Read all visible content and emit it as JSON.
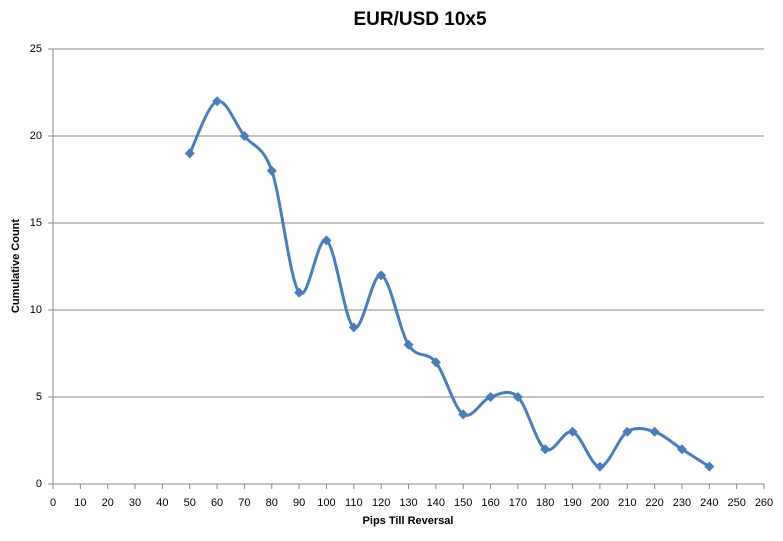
{
  "chart_data": {
    "type": "line",
    "title": "EUR/USD 10x5",
    "x_label": "Pips Till Reversal",
    "y_label": "Cumulative Count",
    "x": [
      50,
      60,
      70,
      80,
      90,
      100,
      110,
      120,
      130,
      140,
      150,
      160,
      170,
      180,
      190,
      200,
      210,
      220,
      230,
      240
    ],
    "values": [
      19,
      22,
      20,
      18,
      11,
      14,
      9,
      12,
      8,
      7,
      4,
      5,
      5,
      2,
      3,
      1,
      3,
      3,
      2,
      1
    ],
    "color": "#4a7ebb",
    "smooth": true,
    "grid": true,
    "xlim": [
      0,
      260
    ],
    "xticks": [
      0,
      10,
      20,
      30,
      40,
      50,
      60,
      70,
      80,
      90,
      100,
      110,
      120,
      130,
      140,
      150,
      160,
      170,
      180,
      190,
      200,
      210,
      220,
      230,
      240,
      250,
      260
    ],
    "ylim": [
      0,
      25
    ],
    "yticks": [
      0,
      5,
      10,
      15,
      20,
      25
    ]
  }
}
